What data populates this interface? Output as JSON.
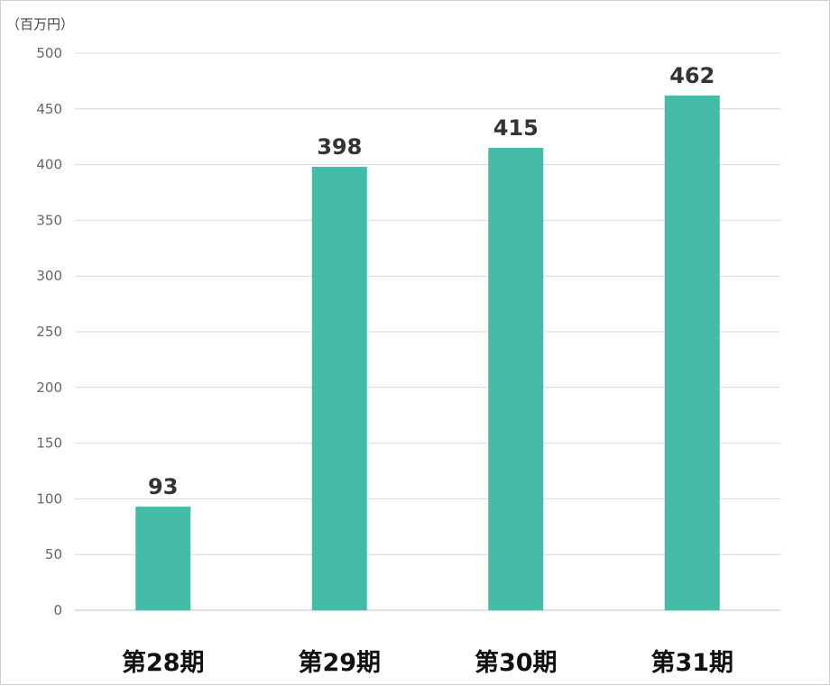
{
  "chart_data": {
    "type": "bar",
    "unit_label": "（百万円）",
    "categories": [
      "第28期",
      "第29期",
      "第30期",
      "第31期"
    ],
    "values": [
      93,
      398,
      415,
      462
    ],
    "data_labels": [
      "93",
      "398",
      "415",
      "462"
    ],
    "ylim": [
      0,
      500
    ],
    "yticks": [
      0,
      50,
      100,
      150,
      200,
      250,
      300,
      350,
      400,
      450,
      500
    ],
    "grid": true,
    "legend": "none",
    "bar_color": "#45bca8"
  }
}
